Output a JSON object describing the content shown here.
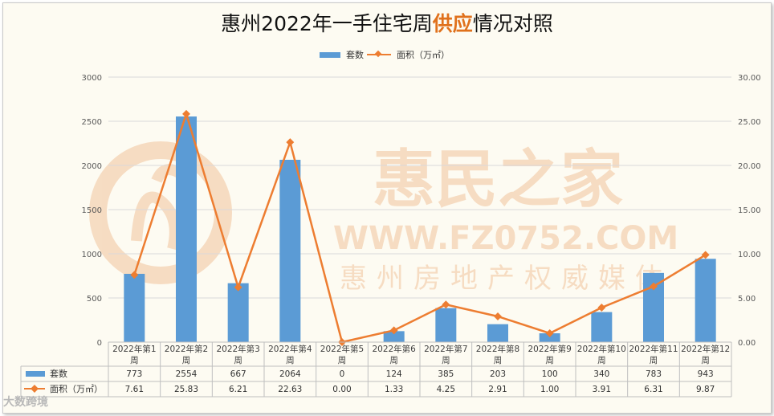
{
  "title_main": "惠州2022年一手住宅周",
  "title_highlight": "供应",
  "title_tail": "情况对照",
  "chart_data": {
    "type": "bar",
    "categories": [
      "2022年第1周",
      "2022年第2周",
      "2022年第3周",
      "2022年第4周",
      "2022年第5周",
      "2022年第6周",
      "2022年第7周",
      "2022年第8周",
      "2022年第9周",
      "2022年第10周",
      "2022年第11周",
      "2022年第12周"
    ],
    "series": [
      {
        "name": "套数",
        "type": "bar",
        "axis": "left",
        "color": "#5b9bd5",
        "values": [
          773,
          2554,
          667,
          2064,
          0,
          124,
          385,
          203,
          100,
          340,
          783,
          943
        ]
      },
      {
        "name": "面积（万㎡）",
        "type": "line",
        "axis": "right",
        "color": "#ed7d31",
        "values": [
          7.61,
          25.83,
          6.21,
          22.63,
          0.0,
          1.33,
          4.25,
          2.91,
          1.0,
          3.91,
          6.31,
          9.87
        ]
      }
    ],
    "left_ticks": [
      "0",
      "500",
      "1000",
      "1500",
      "2000",
      "2500",
      "3000"
    ],
    "right_ticks": [
      "0.00",
      "5.00",
      "10.00",
      "15.00",
      "20.00",
      "25.00",
      "30.00"
    ],
    "ylim_left": [
      0,
      3000
    ],
    "ylim_right": [
      0,
      30
    ],
    "table_values": {
      "bar": [
        "773",
        "2554",
        "667",
        "2064",
        "0",
        "124",
        "385",
        "203",
        "100",
        "340",
        "783",
        "943"
      ],
      "line": [
        "7.61",
        "25.83",
        "6.21",
        "22.63",
        "0.00",
        "1.33",
        "4.25",
        "2.91",
        "1.00",
        "3.91",
        "6.31",
        "9.87"
      ]
    },
    "grid": true,
    "legend": "top"
  },
  "watermark": {
    "brand": "惠民之家",
    "url": "WWW.FZ0752.COM",
    "tagline": "惠州房地产权威媒体"
  },
  "footer_logo": "大数跨境"
}
